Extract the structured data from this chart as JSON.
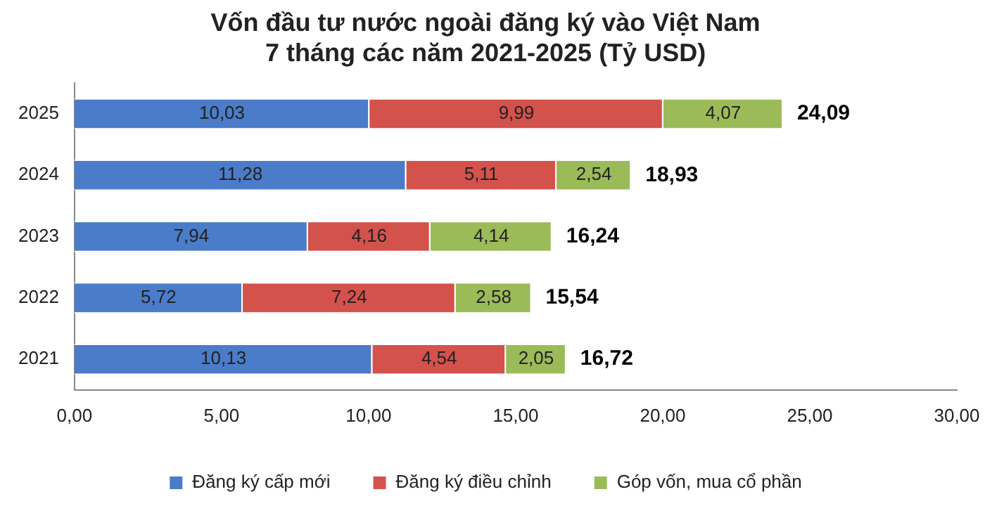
{
  "chart_data": {
    "type": "bar",
    "orientation": "horizontal",
    "stacked": true,
    "title": "Vốn đầu tư nước ngoài đăng ký vào Việt Nam",
    "subtitle": "7 tháng các năm 2021-2025 (Tỷ USD)",
    "categories": [
      "2025",
      "2024",
      "2023",
      "2022",
      "2021"
    ],
    "series": [
      {
        "name": "Đăng ký cấp mới",
        "color": "#4a7cc9",
        "values": [
          10.03,
          11.28,
          7.94,
          5.72,
          10.13
        ],
        "value_labels": [
          "10,03",
          "11,28",
          "7,94",
          "5,72",
          "10,13"
        ]
      },
      {
        "name": "Đăng ký điều chỉnh",
        "color": "#d4524c",
        "values": [
          9.99,
          5.11,
          4.16,
          7.24,
          4.54
        ],
        "value_labels": [
          "9,99",
          "5,11",
          "4,16",
          "7,24",
          "4,54"
        ]
      },
      {
        "name": "Góp vốn, mua cổ phần",
        "color": "#9bbb59",
        "values": [
          4.07,
          2.54,
          4.14,
          2.58,
          2.05
        ],
        "value_labels": [
          "4,07",
          "2,54",
          "4,14",
          "2,58",
          "2,05"
        ]
      }
    ],
    "totals": [
      "24,09",
      "18,93",
      "16,24",
      "15,54",
      "16,72"
    ],
    "xlim": [
      0,
      30
    ],
    "xticks": [
      {
        "value": 0,
        "label": "0,00"
      },
      {
        "value": 5,
        "label": "5,00"
      },
      {
        "value": 10,
        "label": "10,00"
      },
      {
        "value": 15,
        "label": "15,00"
      },
      {
        "value": 20,
        "label": "20,00"
      },
      {
        "value": 25,
        "label": "25,00"
      },
      {
        "value": 30,
        "label": "30,00"
      }
    ],
    "grid": false,
    "legend": "bottom"
  }
}
